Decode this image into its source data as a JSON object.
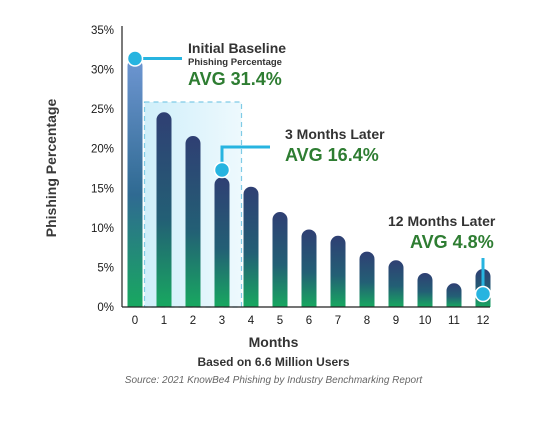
{
  "chart_data": {
    "type": "bar",
    "xlabel": "Months",
    "ylabel": "Phishing Percentage",
    "subtitle": "Based on 6.6 Million Users",
    "source": "Source: 2021 KnowBe4 Phishing by Industry Benchmarking Report",
    "categories": [
      "0",
      "1",
      "2",
      "3",
      "4",
      "5",
      "6",
      "7",
      "8",
      "9",
      "10",
      "11",
      "12"
    ],
    "values": [
      31.4,
      24.6,
      21.6,
      16.4,
      15.2,
      12.0,
      9.8,
      9.0,
      7.0,
      5.9,
      4.3,
      3.0,
      4.8
    ],
    "ylim": [
      0,
      35
    ],
    "yticks": [
      "0%",
      "5%",
      "10%",
      "15%",
      "20%",
      "25%",
      "30%",
      "35%"
    ],
    "grid": false,
    "colors": {
      "bar_top": "#2f3f73",
      "bar_bottom": "#18a860",
      "bar_first_top": "#6e96d2",
      "marker": "#27b4e0",
      "highlight": "#cdeefa",
      "avg_text": "#2e7d32"
    },
    "annotations": [
      {
        "title": "Initial Baseline",
        "sub": "Phishing Percentage",
        "avg": "AVG 31.4%",
        "month": 0
      },
      {
        "title": "3 Months Later",
        "sub": "",
        "avg": "AVG 16.4%",
        "month": 3
      },
      {
        "title": "12 Months Later",
        "sub": "",
        "avg": "AVG 4.8%",
        "month": 12
      }
    ]
  }
}
